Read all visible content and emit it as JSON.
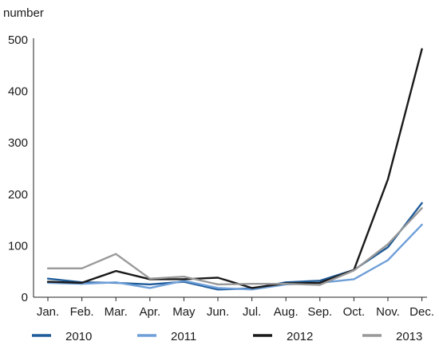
{
  "chart_data": {
    "type": "line",
    "ylabel": "number",
    "categories": [
      "Jan.",
      "Feb.",
      "Mar.",
      "Apr.",
      "May",
      "Jun.",
      "Jul.",
      "Aug.",
      "Sep.",
      "Oct.",
      "Nov.",
      "Dec."
    ],
    "ylim": [
      0,
      500
    ],
    "yticks": [
      0,
      100,
      200,
      300,
      400,
      500
    ],
    "grid": false,
    "legend_position": "bottom",
    "series": [
      {
        "name": "2010",
        "color": "#1f5c99",
        "values": [
          36,
          29,
          28,
          25,
          30,
          15,
          17,
          29,
          32,
          53,
          97,
          183
        ]
      },
      {
        "name": "2011",
        "color": "#6f9fd8",
        "values": [
          28,
          26,
          29,
          18,
          32,
          18,
          15,
          25,
          28,
          35,
          72,
          141
        ]
      },
      {
        "name": "2012",
        "color": "#1a1a1a",
        "values": [
          30,
          28,
          51,
          35,
          35,
          38,
          18,
          27,
          28,
          53,
          229,
          482
        ]
      },
      {
        "name": "2013",
        "color": "#999999",
        "values": [
          56,
          56,
          84,
          36,
          40,
          25,
          26,
          26,
          24,
          52,
          103,
          173
        ]
      }
    ]
  }
}
